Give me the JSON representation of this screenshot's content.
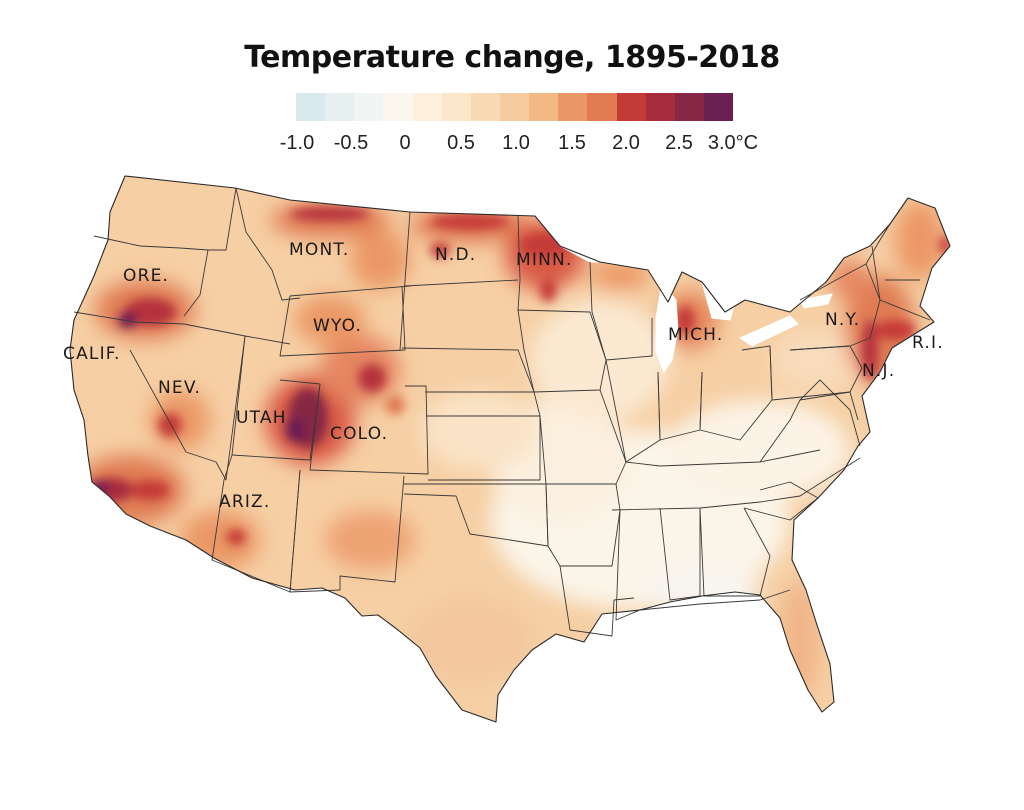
{
  "title": "Temperature change, 1895-2018",
  "legend": {
    "colors": [
      "#d9e8ec",
      "#e6f0f1",
      "#f1f5f3",
      "#fbf7ee",
      "#fcf0dd",
      "#fbe6c9",
      "#f9dab4",
      "#f6cb9d",
      "#f2b984",
      "#eb9866",
      "#e07b52",
      "#c43a37",
      "#a72c3c",
      "#862845",
      "#6b1f52"
    ],
    "ticks": [
      "-1.0",
      "-0.5",
      "0",
      "0.5",
      "1.0",
      "1.5",
      "2.0",
      "2.5",
      "3.0°C"
    ]
  },
  "states": [
    {
      "id": "wa"
    },
    {
      "id": "or",
      "label": "ORE."
    },
    {
      "id": "ca",
      "label": "CALIF."
    },
    {
      "id": "id"
    },
    {
      "id": "nv",
      "label": "NEV."
    },
    {
      "id": "mt",
      "label": "MONT."
    },
    {
      "id": "wy",
      "label": "WYO."
    },
    {
      "id": "ut",
      "label": "UTAH"
    },
    {
      "id": "az",
      "label": "ARIZ."
    },
    {
      "id": "co",
      "label": "COLO."
    },
    {
      "id": "nm"
    },
    {
      "id": "nd",
      "label": "N.D."
    },
    {
      "id": "sd"
    },
    {
      "id": "ne"
    },
    {
      "id": "ks"
    },
    {
      "id": "ok"
    },
    {
      "id": "tx"
    },
    {
      "id": "mn",
      "label": "MINN."
    },
    {
      "id": "ia"
    },
    {
      "id": "mo"
    },
    {
      "id": "ar"
    },
    {
      "id": "la"
    },
    {
      "id": "wi"
    },
    {
      "id": "il"
    },
    {
      "id": "mi",
      "label": "MICH."
    },
    {
      "id": "in"
    },
    {
      "id": "oh"
    },
    {
      "id": "ky"
    },
    {
      "id": "tn"
    },
    {
      "id": "ms"
    },
    {
      "id": "al"
    },
    {
      "id": "ga"
    },
    {
      "id": "fl"
    },
    {
      "id": "sc"
    },
    {
      "id": "nc"
    },
    {
      "id": "va"
    },
    {
      "id": "wv"
    },
    {
      "id": "pa"
    },
    {
      "id": "ny",
      "label": "N.Y."
    },
    {
      "id": "nj",
      "label": "N.J."
    },
    {
      "id": "ri",
      "label": "R.I."
    },
    {
      "id": "me"
    }
  ]
}
